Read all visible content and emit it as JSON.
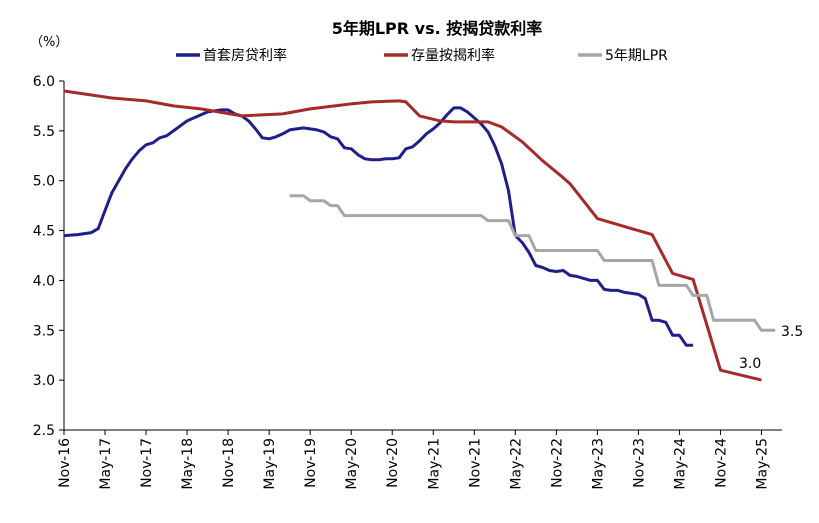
{
  "chart_data": {
    "type": "line",
    "title": "5年期LPR vs. 按揭贷款利率",
    "ylabel": "（%）",
    "xlabel": "",
    "ylim": [
      2.5,
      6.0
    ],
    "yticks": [
      "2.5",
      "3.0",
      "3.5",
      "4.0",
      "4.5",
      "5.0",
      "5.5",
      "6.0"
    ],
    "xlim": [
      "2016-11",
      "2025-08"
    ],
    "xticks": [
      "Nov-16",
      "May-17",
      "Nov-17",
      "May-18",
      "Nov-18",
      "May-19",
      "Nov-19",
      "May-20",
      "Nov-20",
      "May-21",
      "Nov-21",
      "May-22",
      "Nov-22",
      "May-23",
      "Nov-23",
      "May-24",
      "Nov-24",
      "May-25"
    ],
    "grid": false,
    "legend_position": "top",
    "annotations": [
      {
        "text": "3.5",
        "x": "2025-06",
        "y": 3.5
      },
      {
        "text": "3.0",
        "x": "2025-03",
        "y": 3.0
      }
    ],
    "series": [
      {
        "name": "首套房贷利率",
        "color": "#1f1f8a",
        "points": [
          [
            "2016-11",
            4.45
          ],
          [
            "2017-01",
            4.46
          ],
          [
            "2017-03",
            4.48
          ],
          [
            "2017-04",
            4.52
          ],
          [
            "2017-05",
            4.7
          ],
          [
            "2017-06",
            4.88
          ],
          [
            "2017-07",
            5.0
          ],
          [
            "2017-08",
            5.12
          ],
          [
            "2017-09",
            5.22
          ],
          [
            "2017-10",
            5.3
          ],
          [
            "2017-11",
            5.36
          ],
          [
            "2017-12",
            5.38
          ],
          [
            "2018-01",
            5.43
          ],
          [
            "2018-02",
            5.45
          ],
          [
            "2018-03",
            5.5
          ],
          [
            "2018-04",
            5.55
          ],
          [
            "2018-05",
            5.6
          ],
          [
            "2018-06",
            5.63
          ],
          [
            "2018-07",
            5.66
          ],
          [
            "2018-08",
            5.69
          ],
          [
            "2018-09",
            5.7
          ],
          [
            "2018-10",
            5.71
          ],
          [
            "2018-11",
            5.71
          ],
          [
            "2018-12",
            5.67
          ],
          [
            "2019-01",
            5.65
          ],
          [
            "2019-02",
            5.6
          ],
          [
            "2019-03",
            5.52
          ],
          [
            "2019-04",
            5.43
          ],
          [
            "2019-05",
            5.42
          ],
          [
            "2019-06",
            5.44
          ],
          [
            "2019-07",
            5.47
          ],
          [
            "2019-08",
            5.51
          ],
          [
            "2019-09",
            5.52
          ],
          [
            "2019-10",
            5.53
          ],
          [
            "2019-11",
            5.52
          ],
          [
            "2019-12",
            5.51
          ],
          [
            "2020-01",
            5.49
          ],
          [
            "2020-02",
            5.44
          ],
          [
            "2020-03",
            5.42
          ],
          [
            "2020-04",
            5.33
          ],
          [
            "2020-05",
            5.32
          ],
          [
            "2020-06",
            5.26
          ],
          [
            "2020-07",
            5.22
          ],
          [
            "2020-08",
            5.21
          ],
          [
            "2020-09",
            5.21
          ],
          [
            "2020-10",
            5.22
          ],
          [
            "2020-11",
            5.22
          ],
          [
            "2020-12",
            5.23
          ],
          [
            "2021-01",
            5.32
          ],
          [
            "2021-02",
            5.34
          ],
          [
            "2021-03",
            5.4
          ],
          [
            "2021-04",
            5.47
          ],
          [
            "2021-05",
            5.52
          ],
          [
            "2021-06",
            5.58
          ],
          [
            "2021-07",
            5.66
          ],
          [
            "2021-08",
            5.73
          ],
          [
            "2021-09",
            5.73
          ],
          [
            "2021-10",
            5.69
          ],
          [
            "2021-11",
            5.63
          ],
          [
            "2021-12",
            5.57
          ],
          [
            "2022-01",
            5.49
          ],
          [
            "2022-02",
            5.35
          ],
          [
            "2022-03",
            5.17
          ],
          [
            "2022-04",
            4.9
          ],
          [
            "2022-05",
            4.45
          ],
          [
            "2022-06",
            4.38
          ],
          [
            "2022-07",
            4.28
          ],
          [
            "2022-08",
            4.15
          ],
          [
            "2022-09",
            4.13
          ],
          [
            "2022-10",
            4.1
          ],
          [
            "2022-11",
            4.09
          ],
          [
            "2022-12",
            4.1
          ],
          [
            "2023-01",
            4.05
          ],
          [
            "2023-02",
            4.04
          ],
          [
            "2023-03",
            4.02
          ],
          [
            "2023-04",
            4.0
          ],
          [
            "2023-05",
            4.0
          ],
          [
            "2023-06",
            3.91
          ],
          [
            "2023-07",
            3.9
          ],
          [
            "2023-08",
            3.9
          ],
          [
            "2023-09",
            3.88
          ],
          [
            "2023-10",
            3.87
          ],
          [
            "2023-11",
            3.86
          ],
          [
            "2023-12",
            3.82
          ],
          [
            "2024-01",
            3.6
          ],
          [
            "2024-02",
            3.6
          ],
          [
            "2024-03",
            3.58
          ],
          [
            "2024-04",
            3.45
          ],
          [
            "2024-05",
            3.45
          ],
          [
            "2024-06",
            3.35
          ],
          [
            "2024-07",
            3.35
          ]
        ]
      },
      {
        "name": "存量按揭利率",
        "color": "#a52a2a",
        "points": [
          [
            "2016-11",
            5.9
          ],
          [
            "2017-06",
            5.83
          ],
          [
            "2017-11",
            5.8
          ],
          [
            "2018-03",
            5.75
          ],
          [
            "2018-07",
            5.72
          ],
          [
            "2019-01",
            5.65
          ],
          [
            "2019-07",
            5.67
          ],
          [
            "2019-11",
            5.72
          ],
          [
            "2020-05",
            5.77
          ],
          [
            "2020-08",
            5.79
          ],
          [
            "2020-12",
            5.8
          ],
          [
            "2021-01",
            5.79
          ],
          [
            "2021-03",
            5.65
          ],
          [
            "2021-06",
            5.6
          ],
          [
            "2021-08",
            5.59
          ],
          [
            "2022-01",
            5.59
          ],
          [
            "2022-03",
            5.54
          ],
          [
            "2022-06",
            5.39
          ],
          [
            "2022-09",
            5.2
          ],
          [
            "2022-12",
            5.03
          ],
          [
            "2023-01",
            4.97
          ],
          [
            "2023-05",
            4.62
          ],
          [
            "2023-11",
            4.5
          ],
          [
            "2024-01",
            4.46
          ],
          [
            "2024-04",
            4.07
          ],
          [
            "2024-07",
            4.01
          ],
          [
            "2024-11",
            3.1
          ],
          [
            "2025-05",
            3.0
          ]
        ]
      },
      {
        "name": "5年期LPR",
        "color": "#a6a6a6",
        "points": [
          [
            "2019-08",
            4.85
          ],
          [
            "2019-10",
            4.85
          ],
          [
            "2019-11",
            4.8
          ],
          [
            "2020-01",
            4.8
          ],
          [
            "2020-02",
            4.75
          ],
          [
            "2020-03",
            4.75
          ],
          [
            "2020-04",
            4.65
          ],
          [
            "2021-11",
            4.65
          ],
          [
            "2021-12",
            4.65
          ],
          [
            "2022-01",
            4.6
          ],
          [
            "2022-04",
            4.6
          ],
          [
            "2022-05",
            4.45
          ],
          [
            "2022-07",
            4.45
          ],
          [
            "2022-08",
            4.3
          ],
          [
            "2023-05",
            4.3
          ],
          [
            "2023-06",
            4.2
          ],
          [
            "2024-01",
            4.2
          ],
          [
            "2024-02",
            3.95
          ],
          [
            "2024-06",
            3.95
          ],
          [
            "2024-07",
            3.85
          ],
          [
            "2024-09",
            3.85
          ],
          [
            "2024-10",
            3.6
          ],
          [
            "2025-04",
            3.6
          ],
          [
            "2025-05",
            3.5
          ],
          [
            "2025-07",
            3.5
          ]
        ]
      }
    ]
  }
}
